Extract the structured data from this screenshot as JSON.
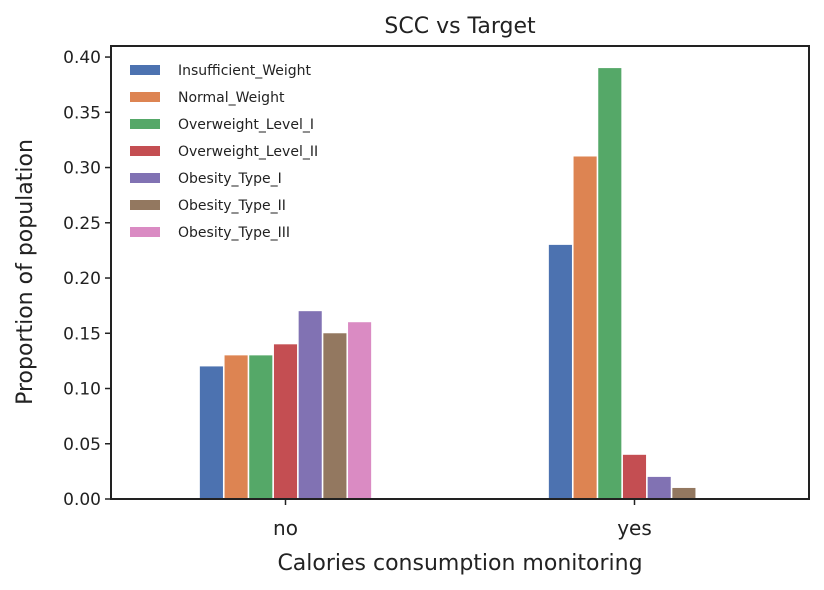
{
  "chart_data": {
    "type": "bar",
    "title": "SCC vs Target",
    "xlabel": "Calories consumption monitoring",
    "ylabel": "Proportion of population",
    "categories": [
      "no",
      "yes"
    ],
    "ylim": [
      0,
      0.41
    ],
    "yticks": [
      "0.00",
      "0.05",
      "0.10",
      "0.15",
      "0.20",
      "0.25",
      "0.30",
      "0.35",
      "0.40"
    ],
    "legend_position": "top-left",
    "grid": false,
    "series": [
      {
        "name": "Insufficient_Weight",
        "color": "#4c72b0",
        "values": [
          0.12,
          0.23
        ]
      },
      {
        "name": "Normal_Weight",
        "color": "#dd8452",
        "values": [
          0.13,
          0.31
        ]
      },
      {
        "name": "Overweight_Level_I",
        "color": "#55a868",
        "values": [
          0.13,
          0.39
        ]
      },
      {
        "name": "Overweight_Level_II",
        "color": "#c44e52",
        "values": [
          0.14,
          0.04
        ]
      },
      {
        "name": "Obesity_Type_I",
        "color": "#8172b3",
        "values": [
          0.17,
          0.02
        ]
      },
      {
        "name": "Obesity_Type_II",
        "color": "#937860",
        "values": [
          0.15,
          0.01
        ]
      },
      {
        "name": "Obesity_Type_III",
        "color": "#da8bc3",
        "values": [
          0.16,
          0.0
        ]
      }
    ]
  }
}
